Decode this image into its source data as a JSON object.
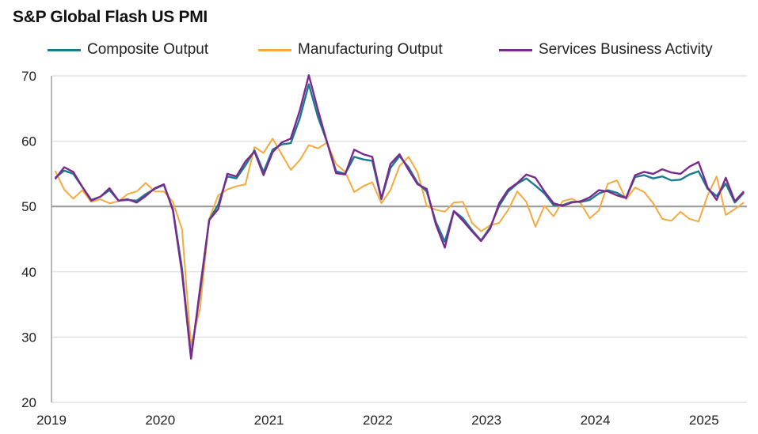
{
  "chart_data": {
    "type": "line",
    "title": "S&P Global Flash US PMI",
    "xlabel": "",
    "ylabel": "",
    "ylim": [
      20,
      70
    ],
    "yticks": [
      20,
      30,
      40,
      50,
      60,
      70
    ],
    "xticks": [
      "2019",
      "2020",
      "2021",
      "2022",
      "2023",
      "2024",
      "2025"
    ],
    "x_start": "2019-01",
    "x_end": "2025-05",
    "frequency": "monthly",
    "reference_line": 50,
    "grid": true,
    "legend_position": "top",
    "series": [
      {
        "name": "Composite Output",
        "color": "#1b7a8e",
        "values": [
          54.4,
          55.5,
          55.0,
          53.0,
          51.0,
          51.5,
          52.5,
          50.9,
          51.0,
          50.9,
          51.9,
          52.7,
          53.3,
          49.6,
          40.5,
          27.0,
          37.0,
          47.9,
          50.3,
          54.6,
          54.3,
          56.3,
          58.6,
          55.3,
          58.7,
          59.5,
          59.7,
          63.5,
          68.7,
          63.7,
          59.9,
          55.4,
          55.0,
          57.6,
          57.2,
          57.0,
          51.1,
          55.9,
          57.7,
          56.0,
          53.6,
          52.3,
          47.7,
          44.6,
          49.3,
          48.2,
          46.4,
          44.8,
          46.8,
          50.1,
          52.3,
          53.5,
          54.3,
          53.2,
          52.0,
          50.2,
          50.2,
          50.7,
          50.7,
          51.0,
          52.0,
          52.5,
          52.1,
          51.3,
          54.5,
          54.8,
          54.3,
          54.6,
          54.0,
          54.1,
          54.9,
          55.4,
          52.7,
          51.6,
          53.5,
          50.6,
          52.1
        ]
      },
      {
        "name": "Manufacturing Output",
        "color": "#f6a93e",
        "values": [
          55.5,
          52.6,
          51.2,
          52.5,
          50.7,
          51.1,
          50.5,
          50.8,
          51.9,
          52.3,
          53.6,
          52.3,
          52.3,
          50.7,
          46.5,
          28.7,
          34.4,
          48.1,
          51.7,
          52.6,
          53.1,
          53.4,
          59.1,
          58.2,
          60.4,
          58.0,
          55.6,
          57.1,
          59.4,
          58.9,
          59.8,
          56.5,
          55.3,
          52.2,
          53.1,
          53.7,
          50.5,
          52.5,
          56.2,
          57.6,
          55.2,
          50.1,
          49.5,
          49.2,
          50.6,
          50.7,
          47.5,
          46.2,
          47.1,
          47.5,
          49.5,
          52.3,
          50.7,
          46.9,
          50.1,
          48.5,
          50.8,
          51.2,
          50.5,
          48.2,
          49.4,
          53.5,
          54.0,
          51.1,
          52.9,
          52.2,
          50.5,
          48.1,
          47.8,
          49.2,
          48.1,
          47.7,
          51.7,
          54.6,
          48.7,
          49.6,
          50.6
        ]
      },
      {
        "name": "Services Business Activity",
        "color": "#7a2a8e",
        "values": [
          54.2,
          56.0,
          55.3,
          53.0,
          50.9,
          51.5,
          52.8,
          50.9,
          51.1,
          50.6,
          51.6,
          52.8,
          53.4,
          49.4,
          39.8,
          26.7,
          37.5,
          47.9,
          49.6,
          55.0,
          54.6,
          56.9,
          58.4,
          54.8,
          58.3,
          59.8,
          60.4,
          64.7,
          70.1,
          64.8,
          59.9,
          55.1,
          54.9,
          58.7,
          58.0,
          57.6,
          51.2,
          56.5,
          58.0,
          55.6,
          53.4,
          52.7,
          47.3,
          43.7,
          49.3,
          47.8,
          46.2,
          44.7,
          46.6,
          50.5,
          52.6,
          53.6,
          54.9,
          54.4,
          52.3,
          50.5,
          50.1,
          50.6,
          50.8,
          51.4,
          52.5,
          52.3,
          51.7,
          51.3,
          54.8,
          55.3,
          55.0,
          55.7,
          55.2,
          55.0,
          56.1,
          56.8,
          52.9,
          51.0,
          54.4,
          50.8,
          52.3
        ]
      }
    ]
  }
}
